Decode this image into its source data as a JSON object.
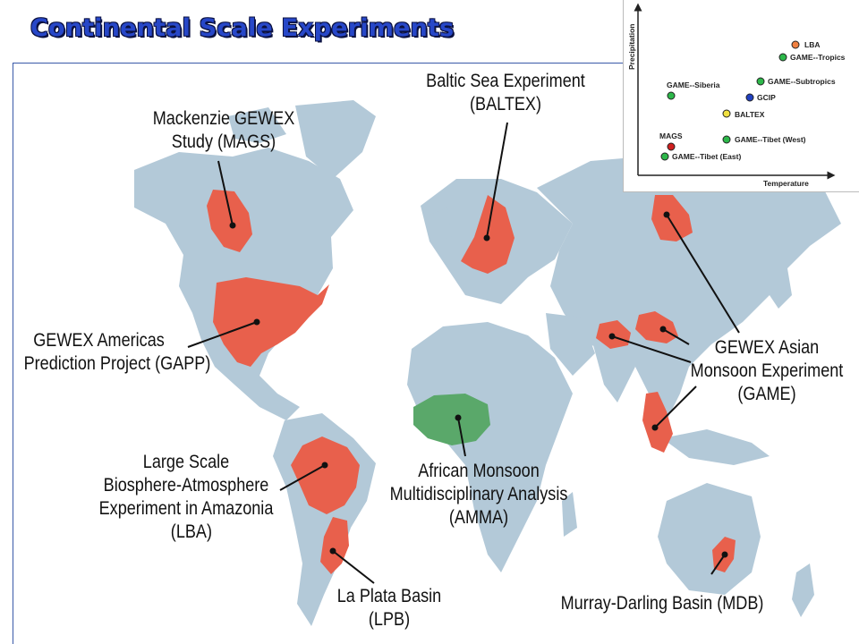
{
  "title": "Continental Scale Experiments",
  "colors": {
    "land": "#b3c9d8",
    "region": "#e8604c",
    "region_amma": "#5aa86a",
    "title": "#2747c8"
  },
  "labels": {
    "mags": [
      "Mackenzie GEWEX",
      "Study (MAGS)"
    ],
    "baltex": [
      "Baltic Sea Experiment",
      "(BALTEX)"
    ],
    "gapp": [
      "GEWEX Americas",
      "Prediction Project (GAPP)"
    ],
    "game": [
      "GEWEX Asian",
      "Monsoon Experiment",
      "(GAME)"
    ],
    "lba": [
      "Large Scale",
      "Biosphere-Atmosphere",
      "Experiment in Amazonia",
      "(LBA)"
    ],
    "amma": [
      "African Monsoon",
      "Multidisciplinary Analysis",
      "(AMMA)"
    ],
    "lpb": [
      "La Plata Basin",
      "(LPB)"
    ],
    "mdb": [
      "Murray-Darling Basin (MDB)"
    ]
  },
  "inset": {
    "xlabel": "Temperature",
    "ylabel": "Precipitation",
    "points": [
      {
        "name": "LBA",
        "color": "#f08040"
      },
      {
        "name": "GAME--Tropics",
        "color": "#2db84a"
      },
      {
        "name": "GAME--Subtropics",
        "color": "#2db84a"
      },
      {
        "name": "GAME--Siberia",
        "color": "#2db84a"
      },
      {
        "name": "GCIP",
        "color": "#2040c0"
      },
      {
        "name": "BALTEX",
        "color": "#f0e040"
      },
      {
        "name": "MAGS",
        "color": "#d02020"
      },
      {
        "name": "GAME--Tibet (West)",
        "color": "#2db84a"
      },
      {
        "name": "GAME--Tibet (East)",
        "color": "#2db84a"
      }
    ]
  }
}
